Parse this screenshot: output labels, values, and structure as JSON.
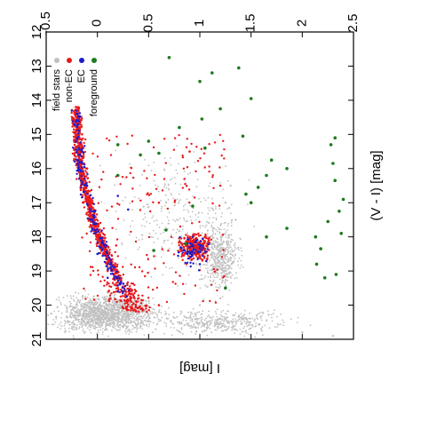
{
  "chart_data": {
    "type": "scatter",
    "orientation": "rotated-90-counterclockwise",
    "x_axis": {
      "label": "I [mag]",
      "range": [
        12,
        21
      ],
      "ticks": [
        "12",
        "13",
        "14",
        "15",
        "16",
        "17",
        "18",
        "19",
        "20",
        "21"
      ],
      "position": "bottom"
    },
    "y_axis": {
      "label": "(V - I) [mag]",
      "range": [
        -0.5,
        2.5
      ],
      "ticks": [
        "-0.5",
        "0",
        "0.5",
        "1",
        "1.5",
        "2",
        "2.5"
      ],
      "position": "right"
    },
    "legend": {
      "placement": "top-left",
      "entries": [
        {
          "name": "field stars",
          "color": "#c0c0c0"
        },
        {
          "name": "non-EC",
          "color": "#e8191c"
        },
        {
          "name": "EC",
          "color": "#1c1ccc"
        },
        {
          "name": "foreground",
          "color": "#1f7a1f"
        }
      ]
    },
    "series": [
      {
        "name": "field stars",
        "color": "#c0c0c0",
        "distribution": "dense cloud",
        "sample_points": [
          [
            20.4,
            -0.15
          ],
          [
            20.5,
            0.0
          ],
          [
            20.6,
            0.2
          ],
          [
            20.3,
            0.3
          ],
          [
            20.2,
            0.6
          ],
          [
            20.0,
            1.0
          ],
          [
            19.8,
            1.2
          ],
          [
            19.0,
            1.25
          ],
          [
            18.5,
            1.3
          ],
          [
            17.5,
            1.35
          ],
          [
            17.0,
            1.25
          ],
          [
            16.5,
            1.3
          ],
          [
            20.7,
            1.6
          ],
          [
            20.8,
            2.0
          ],
          [
            20.9,
            2.3
          ],
          [
            20.5,
            0.8
          ]
        ]
      },
      {
        "name": "non-EC",
        "color": "#e8191c",
        "distribution": "sequence and red clump",
        "sample_points": [
          [
            14.2,
            -0.2
          ],
          [
            15.0,
            -0.15
          ],
          [
            16.0,
            -0.1
          ],
          [
            17.0,
            -0.05
          ],
          [
            18.0,
            0.0
          ],
          [
            19.0,
            0.1
          ],
          [
            19.5,
            0.2
          ],
          [
            19.8,
            0.4
          ],
          [
            20.0,
            0.6
          ],
          [
            18.2,
            0.85
          ],
          [
            18.5,
            0.95
          ],
          [
            18.0,
            1.05
          ],
          [
            17.0,
            0.6
          ],
          [
            16.5,
            1.2
          ],
          [
            15.5,
            0.9
          ]
        ]
      },
      {
        "name": "EC",
        "color": "#1c1ccc",
        "distribution": "blue sequence",
        "sample_points": [
          [
            14.4,
            -0.2
          ],
          [
            15.5,
            -0.15
          ],
          [
            16.5,
            -0.1
          ],
          [
            17.5,
            -0.05
          ],
          [
            18.5,
            0.0
          ],
          [
            19.2,
            0.1
          ],
          [
            19.6,
            0.2
          ],
          [
            18.3,
            0.9
          ],
          [
            18.8,
            1.0
          ],
          [
            17.2,
            0.3
          ],
          [
            16.8,
            0.2
          ]
        ]
      },
      {
        "name": "foreground",
        "color": "#1f7a1f",
        "distribution": "sparse",
        "points": [
          [
            15.1,
            2.32
          ],
          [
            15.3,
            2.28
          ],
          [
            15.85,
            2.3
          ],
          [
            16.35,
            2.32
          ],
          [
            16.9,
            2.4
          ],
          [
            17.25,
            2.36
          ],
          [
            17.55,
            2.25
          ],
          [
            17.9,
            2.38
          ],
          [
            18.0,
            2.13
          ],
          [
            18.35,
            2.18
          ],
          [
            18.8,
            2.14
          ],
          [
            19.2,
            2.22
          ],
          [
            19.1,
            2.33
          ],
          [
            16.0,
            1.85
          ],
          [
            16.2,
            1.65
          ],
          [
            16.55,
            1.57
          ],
          [
            17.0,
            1.5
          ],
          [
            16.75,
            1.45
          ],
          [
            18.0,
            1.65
          ],
          [
            17.75,
            1.85
          ],
          [
            15.75,
            1.7
          ],
          [
            13.95,
            1.5
          ],
          [
            13.05,
            1.38
          ],
          [
            13.45,
            1.0
          ],
          [
            14.25,
            1.2
          ],
          [
            13.2,
            1.12
          ],
          [
            14.55,
            1.02
          ],
          [
            15.4,
            1.05
          ],
          [
            14.8,
            0.8
          ],
          [
            15.55,
            0.6
          ],
          [
            15.2,
            0.5
          ],
          [
            15.6,
            0.42
          ],
          [
            15.3,
            0.2
          ],
          [
            16.2,
            0.2
          ],
          [
            17.1,
            0.93
          ],
          [
            18.2,
            0.86
          ],
          [
            17.8,
            0.67
          ],
          [
            18.4,
            0.55
          ],
          [
            19.5,
            1.25
          ],
          [
            12.75,
            0.7
          ],
          [
            15.05,
            1.42
          ]
        ]
      }
    ]
  }
}
